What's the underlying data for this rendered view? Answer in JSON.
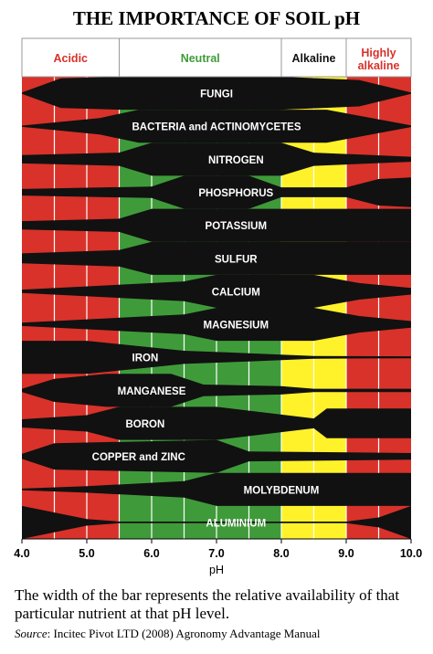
{
  "title": "THE IMPORTANCE OF SOIL pH",
  "colors": {
    "acidic": "#d8322a",
    "neutral": "#3f9b3a",
    "alkaline": "#fff22a",
    "highly_alkaline": "#d8322a",
    "band_fill": "#111111",
    "band_text": "#ffffff",
    "header_acidic_text": "#d8322a",
    "header_neutral_text": "#3f9b3a",
    "header_alkaline_text": "#111111",
    "header_highly_text": "#d8322a"
  },
  "chart_data": {
    "type": "diagram",
    "xlabel": "pH",
    "x_ticks": [
      "4.0",
      "5.0",
      "6.0",
      "7.0",
      "8.0",
      "9.0",
      "10.0"
    ],
    "xlim": [
      4.0,
      10.0
    ],
    "zones": [
      {
        "label": "Acidic",
        "from": 4.0,
        "to": 5.5,
        "color_key": "acidic"
      },
      {
        "label": "Neutral",
        "from": 5.5,
        "to": 8.0,
        "color_key": "neutral"
      },
      {
        "label": "Alkaline",
        "from": 8.0,
        "to": 9.0,
        "color_key": "alkaline"
      },
      {
        "label": "Highly\nalkaline",
        "from": 9.0,
        "to": 10.0,
        "color_key": "highly_alkaline"
      }
    ],
    "nutrients": [
      {
        "name": "FUNGI",
        "label_ph": 7.0,
        "availability": [
          [
            4.0,
            0.04
          ],
          [
            4.6,
            0.9
          ],
          [
            5.5,
            1
          ],
          [
            8.0,
            1
          ],
          [
            9.2,
            0.8
          ],
          [
            10.0,
            0.04
          ]
        ]
      },
      {
        "name": "BACTERIA and ACTINOMYCETES",
        "label_ph": 7.0,
        "availability": [
          [
            4.0,
            0.04
          ],
          [
            5.2,
            0.5
          ],
          [
            5.8,
            1
          ],
          [
            8.7,
            1
          ],
          [
            10.0,
            0.05
          ]
        ]
      },
      {
        "name": "NITROGEN",
        "label_ph": 7.3,
        "availability": [
          [
            4.0,
            0.25
          ],
          [
            5.5,
            0.4
          ],
          [
            6.0,
            1
          ],
          [
            8.0,
            1
          ],
          [
            8.5,
            0.4
          ],
          [
            10.0,
            0.15
          ]
        ]
      },
      {
        "name": "PHOSPHORUS",
        "label_ph": 7.3,
        "availability": [
          [
            4.0,
            0.2
          ],
          [
            6.0,
            0.35
          ],
          [
            6.5,
            1
          ],
          [
            7.5,
            1
          ],
          [
            8.0,
            0.3
          ],
          [
            9.0,
            0.3
          ],
          [
            9.5,
            0.8
          ],
          [
            10.0,
            0.9
          ]
        ]
      },
      {
        "name": "POTASSIUM",
        "label_ph": 7.3,
        "availability": [
          [
            4.0,
            0.25
          ],
          [
            5.5,
            0.4
          ],
          [
            6.0,
            1
          ],
          [
            10.0,
            1
          ]
        ]
      },
      {
        "name": "SULFUR",
        "label_ph": 7.3,
        "availability": [
          [
            4.0,
            0.3
          ],
          [
            5.5,
            0.5
          ],
          [
            6.0,
            1
          ],
          [
            10.0,
            1
          ]
        ]
      },
      {
        "name": "CALCIUM",
        "label_ph": 7.3,
        "availability": [
          [
            4.0,
            0.1
          ],
          [
            6.5,
            0.6
          ],
          [
            7.0,
            1
          ],
          [
            8.5,
            1
          ],
          [
            9.2,
            0.5
          ],
          [
            10.0,
            0.2
          ]
        ]
      },
      {
        "name": "MAGNESIUM",
        "label_ph": 7.3,
        "availability": [
          [
            4.0,
            0.1
          ],
          [
            6.5,
            0.6
          ],
          [
            7.0,
            1
          ],
          [
            8.5,
            1
          ],
          [
            9.2,
            0.5
          ],
          [
            10.0,
            0.2
          ]
        ]
      },
      {
        "name": "IRON",
        "label_ph": 5.9,
        "availability": [
          [
            4.0,
            1
          ],
          [
            5.0,
            1
          ],
          [
            6.0,
            0.6
          ],
          [
            6.5,
            0.4
          ],
          [
            7.5,
            0.25
          ],
          [
            8.5,
            0.08
          ],
          [
            10.0,
            0.06
          ]
        ]
      },
      {
        "name": "MANGANESE",
        "label_ph": 6.0,
        "availability": [
          [
            4.0,
            0.1
          ],
          [
            4.5,
            0.7
          ],
          [
            5.3,
            1
          ],
          [
            6.3,
            1
          ],
          [
            6.8,
            0.35
          ],
          [
            8.0,
            0.25
          ],
          [
            8.5,
            0.1
          ],
          [
            10.0,
            0.1
          ]
        ]
      },
      {
        "name": "BORON",
        "label_ph": 5.9,
        "availability": [
          [
            4.0,
            0.25
          ],
          [
            5.0,
            0.5
          ],
          [
            5.5,
            1
          ],
          [
            7.0,
            1
          ],
          [
            8.5,
            0.3
          ],
          [
            8.7,
            0.9
          ],
          [
            10.0,
            0.9
          ]
        ]
      },
      {
        "name": "COPPER and ZINC",
        "label_ph": 5.8,
        "availability": [
          [
            4.0,
            0.15
          ],
          [
            4.5,
            0.8
          ],
          [
            7.0,
            1
          ],
          [
            7.5,
            0.3
          ],
          [
            10.0,
            0.2
          ]
        ]
      },
      {
        "name": "MOLYBDENUM",
        "label_ph": 8.0,
        "availability": [
          [
            4.0,
            0.05
          ],
          [
            5.0,
            0.2
          ],
          [
            6.5,
            0.5
          ],
          [
            7.0,
            1
          ],
          [
            10.0,
            1
          ]
        ]
      },
      {
        "name": "ALUMINIUM",
        "label_ph": 7.3,
        "availability": [
          [
            4.0,
            1
          ],
          [
            5.0,
            0.2
          ],
          [
            5.5,
            0.05
          ],
          [
            9.0,
            0.05
          ],
          [
            9.5,
            0.3
          ],
          [
            10.0,
            1
          ]
        ]
      }
    ]
  },
  "caption": "The width of the bar represents the relative availability of that particular nutrient at that pH level.",
  "source": {
    "label": "Source",
    "text": ": Incitec Pivot LTD (2008) Agronomy Advantage Manual"
  }
}
